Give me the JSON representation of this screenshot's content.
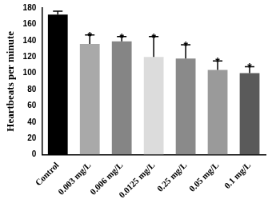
{
  "chart_data": {
    "type": "bar",
    "y_label": "Heartbeats per minute",
    "categories": [
      "Control",
      "0.003 mg/L",
      "0.006 mg/L",
      "0.0125 mg/L",
      "0.25 mg/L",
      "0.05 mg/L",
      "0.1 mg/L"
    ],
    "values": [
      172,
      136,
      139,
      120,
      118,
      104,
      100
    ],
    "errors": [
      4,
      11,
      6,
      25,
      17,
      11,
      8
    ],
    "colors": [
      "#000000",
      "#a9a9a9",
      "#858585",
      "#dcdcdc",
      "#8a8a8a",
      "#9a9a9a",
      "#5a5a5a"
    ],
    "annotations": [
      null,
      "*",
      "*",
      "*",
      "*",
      "*",
      "*"
    ],
    "ylim": [
      0,
      180
    ],
    "yticks": [
      0,
      20,
      40,
      60,
      80,
      100,
      120,
      140,
      160,
      180
    ],
    "grid": false
  }
}
